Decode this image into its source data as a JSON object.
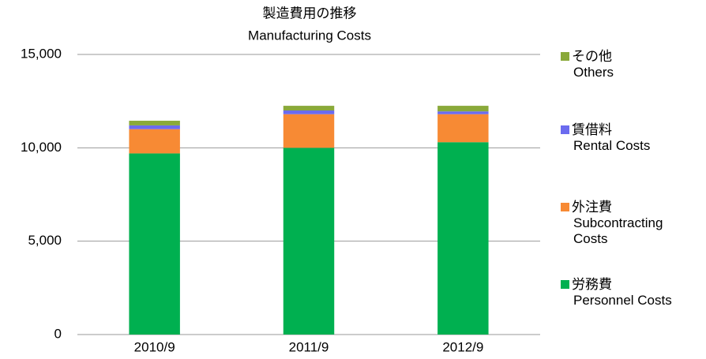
{
  "chart_data": {
    "type": "stacked_bar",
    "title": "製造費用の推移",
    "subtitle": "Manufacturing Costs",
    "categories": [
      "2010/9",
      "2011/9",
      "2012/9"
    ],
    "series": [
      {
        "name": "労務費",
        "name_en": "Personnel Costs",
        "color": "#00b050",
        "values": [
          9700,
          10000,
          10300
        ]
      },
      {
        "name": "外注費",
        "name_en": "Subcontracting Costs",
        "color": "#f78a34",
        "values": [
          1300,
          1800,
          1500
        ]
      },
      {
        "name": "賃借料",
        "name_en": "Rental Costs",
        "color": "#6b6bef",
        "values": [
          200,
          200,
          150
        ]
      },
      {
        "name": "その他",
        "name_en": "Others",
        "color": "#8aa93a",
        "values": [
          250,
          250,
          300
        ]
      }
    ],
    "ylim": [
      0,
      15000
    ],
    "yticks": [
      0,
      {
        "value": 5000,
        "label": "5,000"
      },
      {
        "value": 10000,
        "label": "10,000"
      },
      {
        "value": 15000,
        "label": "15,000"
      }
    ],
    "grid": true
  }
}
